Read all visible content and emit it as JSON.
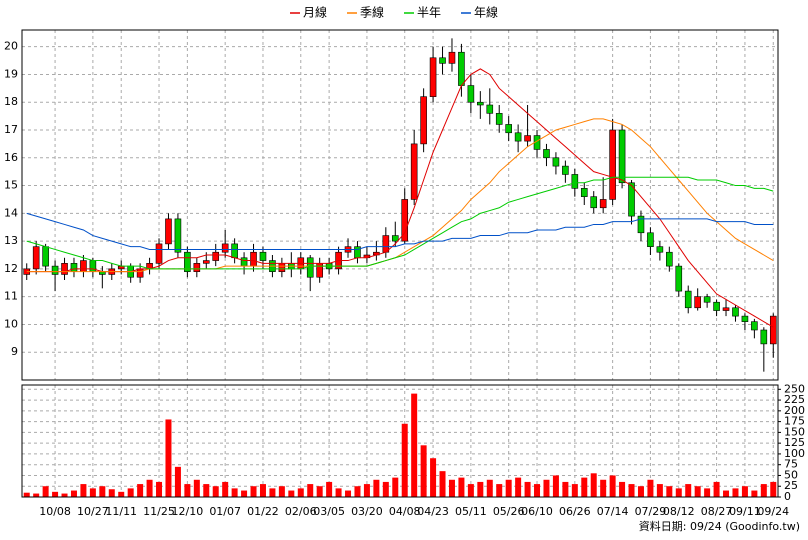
{
  "chart_data": [
    {
      "type": "candlestick",
      "legend": "top",
      "grid": true,
      "up_color": "#ff0000",
      "down_color": "#00cc00",
      "ylim": [
        8,
        20.6
      ],
      "yticks": [
        9,
        10,
        11,
        12,
        13,
        14,
        15,
        16,
        17,
        18,
        19,
        20
      ],
      "open": [
        11.8,
        12.0,
        12.8,
        12.1,
        11.8,
        12.2,
        11.9,
        12.3,
        11.9,
        11.8,
        12.0,
        12.1,
        11.7,
        12.0,
        12.2,
        12.9,
        13.8,
        12.6,
        11.9,
        12.2,
        12.3,
        12.6,
        12.9,
        12.4,
        12.1,
        12.6,
        12.3,
        11.9,
        12.2,
        12.0,
        12.4,
        11.7,
        12.2,
        12.0,
        12.6,
        12.8,
        12.4,
        12.5,
        12.6,
        13.2,
        13.0,
        14.5,
        16.5,
        18.2,
        19.6,
        19.4,
        19.8,
        18.6,
        18.0,
        17.9,
        17.6,
        17.2,
        16.9,
        16.6,
        16.8,
        16.3,
        16.0,
        15.7,
        15.4,
        14.9,
        14.6,
        14.2,
        14.5,
        17.0,
        15.1,
        13.9,
        13.3,
        12.8,
        12.6,
        12.1,
        11.2,
        10.6,
        11.0,
        10.8,
        10.5,
        10.6,
        10.3,
        10.1,
        9.8,
        9.3
      ],
      "high": [
        12.2,
        13.0,
        12.9,
        12.3,
        12.4,
        12.4,
        12.5,
        12.4,
        12.1,
        12.2,
        12.3,
        12.2,
        12.2,
        12.4,
        13.1,
        14.0,
        14.0,
        12.8,
        12.4,
        12.6,
        12.9,
        13.4,
        13.1,
        12.6,
        12.9,
        12.8,
        12.5,
        12.4,
        12.6,
        12.6,
        12.5,
        12.4,
        12.4,
        12.8,
        13.1,
        13.0,
        12.8,
        13.0,
        13.5,
        13.7,
        14.9,
        17.0,
        18.5,
        20.0,
        20.0,
        20.3,
        20.1,
        19.0,
        18.4,
        18.5,
        17.9,
        17.5,
        17.2,
        17.9,
        17.0,
        16.5,
        16.2,
        15.9,
        15.6,
        15.1,
        14.8,
        15.3,
        17.4,
        17.2,
        15.2,
        14.1,
        13.5,
        13.0,
        12.8,
        12.2,
        11.4,
        11.3,
        11.1,
        10.9,
        10.9,
        10.7,
        10.4,
        10.2,
        9.9,
        10.4
      ],
      "low": [
        11.6,
        11.8,
        11.9,
        11.2,
        11.6,
        11.7,
        11.7,
        11.7,
        11.3,
        11.6,
        11.8,
        11.5,
        11.5,
        11.8,
        12.0,
        12.7,
        12.4,
        11.7,
        11.7,
        12.0,
        12.1,
        12.4,
        12.2,
        11.8,
        11.9,
        12.0,
        11.7,
        11.7,
        11.7,
        11.8,
        11.2,
        11.5,
        11.8,
        11.8,
        12.4,
        12.2,
        12.2,
        12.3,
        12.4,
        12.8,
        12.9,
        14.3,
        16.2,
        18.0,
        19.0,
        19.1,
        18.2,
        17.6,
        17.4,
        17.2,
        16.9,
        16.6,
        16.2,
        16.4,
        16.0,
        15.7,
        15.4,
        15.1,
        14.6,
        14.3,
        14.0,
        14.0,
        14.3,
        14.9,
        13.6,
        13.0,
        12.5,
        12.3,
        11.9,
        11.0,
        10.4,
        10.5,
        10.6,
        10.3,
        10.3,
        10.1,
        9.8,
        9.5,
        8.3,
        8.8
      ],
      "close": [
        12.0,
        12.8,
        12.1,
        11.8,
        12.2,
        11.9,
        12.3,
        11.9,
        11.8,
        12.0,
        12.1,
        11.7,
        12.0,
        12.2,
        12.9,
        13.8,
        12.6,
        11.9,
        12.2,
        12.3,
        12.6,
        12.9,
        12.4,
        12.1,
        12.6,
        12.3,
        11.9,
        12.2,
        12.0,
        12.4,
        11.7,
        12.2,
        12.0,
        12.6,
        12.8,
        12.4,
        12.5,
        12.6,
        13.2,
        13.0,
        14.5,
        16.5,
        18.2,
        19.6,
        19.4,
        19.8,
        18.6,
        18.0,
        17.9,
        17.6,
        17.2,
        16.9,
        16.6,
        16.8,
        16.3,
        16.0,
        15.7,
        15.4,
        14.9,
        14.6,
        14.2,
        14.5,
        17.0,
        15.1,
        13.9,
        13.3,
        12.8,
        12.6,
        12.1,
        11.2,
        10.6,
        11.0,
        10.8,
        10.5,
        10.6,
        10.3,
        10.1,
        9.8,
        9.3,
        10.3
      ],
      "series": [
        {
          "name": "月線",
          "color": "#e00000",
          "values": [
            11.9,
            11.9,
            11.9,
            11.9,
            11.9,
            12.0,
            12.0,
            12.0,
            11.9,
            11.9,
            11.9,
            11.9,
            12.0,
            12.0,
            12.1,
            12.3,
            12.4,
            12.4,
            12.4,
            12.5,
            12.5,
            12.5,
            12.4,
            12.3,
            12.3,
            12.2,
            12.2,
            12.2,
            12.2,
            12.2,
            12.2,
            12.2,
            12.2,
            12.3,
            12.3,
            12.4,
            12.4,
            12.5,
            12.6,
            12.9,
            13.3,
            14.2,
            15.2,
            16.2,
            17.0,
            17.8,
            18.6,
            19.0,
            19.2,
            19.0,
            18.5,
            18.2,
            17.9,
            17.6,
            17.3,
            17.0,
            16.7,
            16.4,
            16.1,
            15.8,
            15.5,
            15.4,
            15.3,
            15.2,
            15.0,
            14.6,
            14.2,
            13.8,
            13.3,
            12.8,
            12.3,
            11.9,
            11.5,
            11.1,
            10.9,
            10.7,
            10.5,
            10.3,
            10.1,
            9.9
          ]
        },
        {
          "name": "季線",
          "color": "#ff8000",
          "values": [
            11.9,
            11.9,
            11.9,
            11.9,
            11.9,
            11.9,
            11.9,
            11.9,
            11.9,
            11.9,
            11.9,
            11.9,
            11.9,
            12.0,
            12.0,
            12.0,
            12.0,
            12.0,
            12.0,
            12.0,
            12.0,
            12.1,
            12.1,
            12.1,
            12.1,
            12.1,
            12.1,
            12.1,
            12.1,
            12.1,
            12.1,
            12.1,
            12.1,
            12.1,
            12.1,
            12.1,
            12.1,
            12.2,
            12.3,
            12.4,
            12.6,
            12.8,
            13.0,
            13.2,
            13.5,
            13.8,
            14.1,
            14.5,
            14.8,
            15.1,
            15.5,
            15.8,
            16.1,
            16.4,
            16.6,
            16.8,
            17.0,
            17.1,
            17.2,
            17.3,
            17.4,
            17.4,
            17.3,
            17.2,
            17.0,
            16.7,
            16.4,
            16.0,
            15.6,
            15.2,
            14.8,
            14.4,
            14.0,
            13.7,
            13.4,
            13.1,
            12.9,
            12.7,
            12.5,
            12.3
          ]
        },
        {
          "name": "半年",
          "color": "#00cc00",
          "values": [
            13.0,
            12.9,
            12.8,
            12.7,
            12.6,
            12.5,
            12.4,
            12.3,
            12.3,
            12.2,
            12.1,
            12.1,
            12.1,
            12.0,
            12.0,
            12.0,
            12.0,
            12.0,
            12.0,
            12.0,
            12.0,
            12.0,
            12.0,
            12.0,
            12.0,
            12.0,
            12.0,
            12.0,
            12.0,
            12.0,
            12.1,
            12.1,
            12.1,
            12.1,
            12.1,
            12.1,
            12.1,
            12.2,
            12.3,
            12.4,
            12.5,
            12.7,
            12.9,
            13.1,
            13.3,
            13.5,
            13.7,
            13.8,
            14.0,
            14.1,
            14.2,
            14.4,
            14.5,
            14.6,
            14.7,
            14.8,
            14.9,
            15.0,
            15.1,
            15.1,
            15.2,
            15.2,
            15.3,
            15.3,
            15.3,
            15.3,
            15.3,
            15.3,
            15.3,
            15.3,
            15.3,
            15.2,
            15.2,
            15.2,
            15.1,
            15.0,
            15.0,
            14.9,
            14.9,
            14.8
          ]
        },
        {
          "name": "年線",
          "color": "#0050c8",
          "values": [
            14.0,
            13.9,
            13.8,
            13.7,
            13.6,
            13.5,
            13.4,
            13.2,
            13.1,
            13.0,
            12.9,
            12.8,
            12.8,
            12.7,
            12.7,
            12.7,
            12.7,
            12.7,
            12.7,
            12.7,
            12.7,
            12.7,
            12.7,
            12.7,
            12.7,
            12.7,
            12.7,
            12.7,
            12.7,
            12.7,
            12.7,
            12.7,
            12.7,
            12.7,
            12.7,
            12.7,
            12.8,
            12.8,
            12.8,
            12.8,
            12.9,
            12.9,
            13.0,
            13.0,
            13.0,
            13.1,
            13.1,
            13.1,
            13.2,
            13.2,
            13.2,
            13.3,
            13.3,
            13.3,
            13.4,
            13.4,
            13.4,
            13.5,
            13.5,
            13.5,
            13.6,
            13.6,
            13.7,
            13.7,
            13.7,
            13.8,
            13.8,
            13.8,
            13.8,
            13.8,
            13.8,
            13.8,
            13.8,
            13.7,
            13.7,
            13.7,
            13.7,
            13.6,
            13.6,
            13.6
          ]
        }
      ]
    },
    {
      "type": "bar",
      "grid": true,
      "color": "#ff0000",
      "ylim": [
        0,
        260
      ],
      "yticks": [
        0,
        25,
        50,
        75,
        100,
        125,
        150,
        175,
        200,
        225,
        250
      ],
      "categories": [
        null,
        null,
        null,
        "10/08",
        null,
        null,
        null,
        "10/27",
        null,
        null,
        "11/11",
        null,
        null,
        null,
        "11/25",
        null,
        null,
        "12/10",
        null,
        null,
        null,
        "01/07",
        null,
        null,
        null,
        "01/22",
        null,
        null,
        null,
        "02/06",
        null,
        null,
        "03/05",
        null,
        null,
        null,
        "03/20",
        null,
        null,
        null,
        "04/08",
        null,
        null,
        "04/23",
        null,
        null,
        null,
        "05/11",
        null,
        null,
        null,
        "05/26",
        null,
        null,
        "06/10",
        null,
        null,
        null,
        "06/26",
        null,
        null,
        null,
        "07/14",
        null,
        null,
        null,
        "07/29",
        null,
        null,
        "08/12",
        null,
        null,
        null,
        "08/27",
        null,
        null,
        "09/11",
        null,
        null,
        "09/24"
      ],
      "values": [
        10,
        8,
        25,
        12,
        8,
        15,
        30,
        20,
        25,
        18,
        12,
        20,
        30,
        40,
        35,
        180,
        70,
        30,
        40,
        30,
        25,
        35,
        20,
        15,
        25,
        30,
        20,
        25,
        15,
        20,
        30,
        25,
        35,
        20,
        15,
        25,
        30,
        40,
        35,
        45,
        170,
        240,
        120,
        90,
        60,
        40,
        45,
        30,
        35,
        40,
        30,
        40,
        45,
        35,
        30,
        40,
        50,
        35,
        30,
        45,
        55,
        40,
        50,
        35,
        30,
        25,
        40,
        30,
        25,
        20,
        30,
        25,
        20,
        35,
        15,
        20,
        25,
        15,
        30,
        35
      ],
      "footnote": "資料日期: 09/24 (Goodinfo.tw)"
    }
  ]
}
